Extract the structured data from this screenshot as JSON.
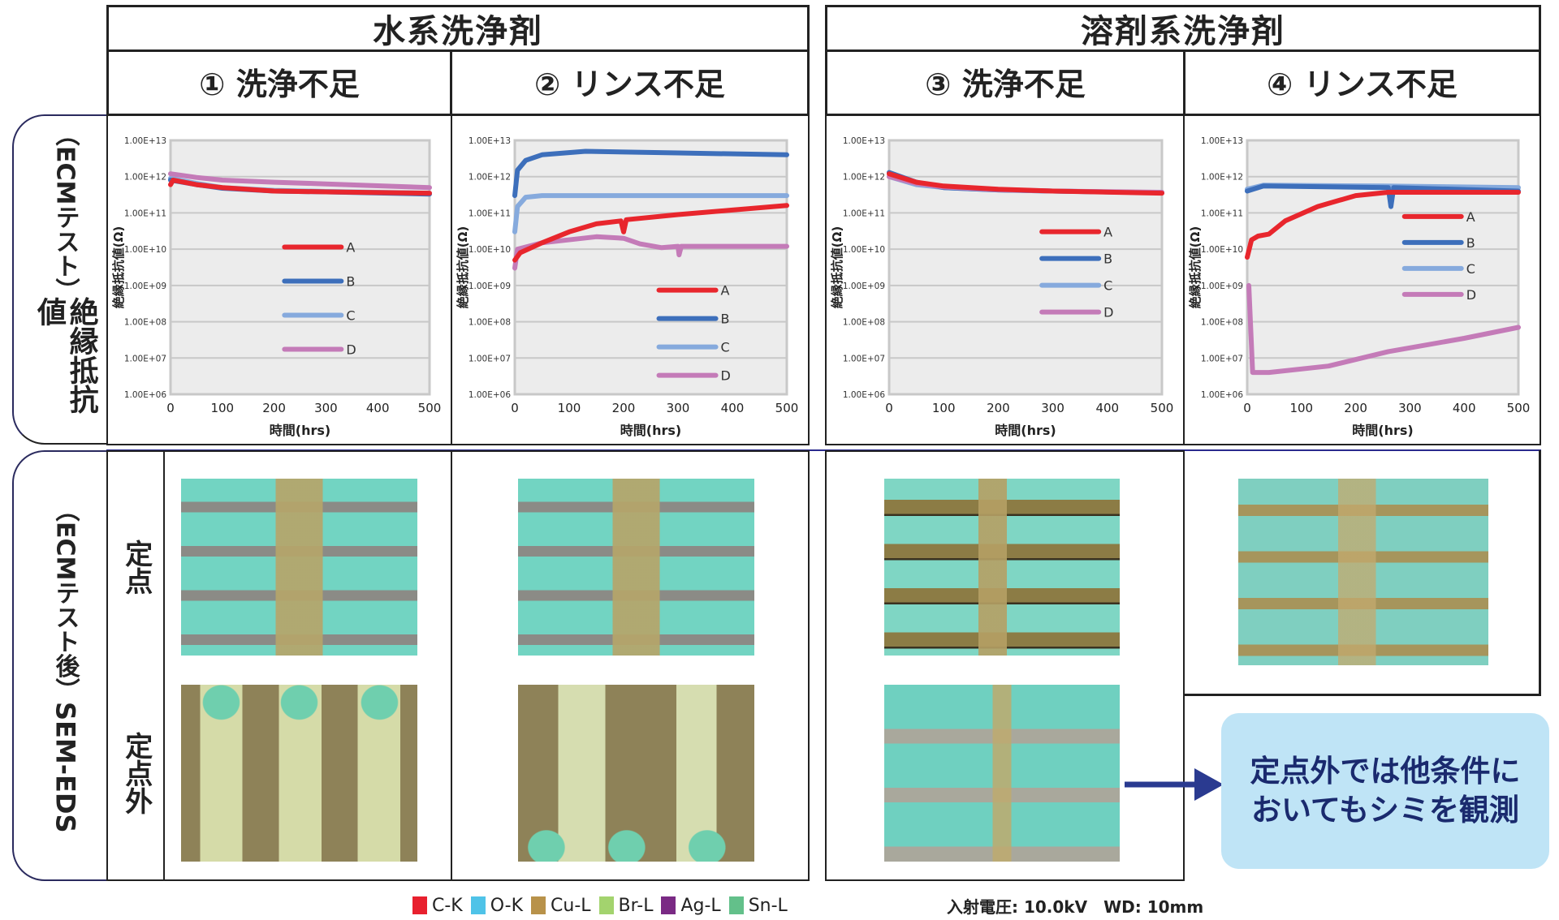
{
  "headers": {
    "aqueous": "水系洗浄剤",
    "solvent": "溶剤系洗浄剤",
    "cases": [
      "① 洗浄不足",
      "② リンス不足",
      "③ 洗浄不足",
      "④ リンス不足"
    ]
  },
  "rows": {
    "ecm_label_main": "絶縁抵抗値",
    "ecm_label_sub": "（ECMテスト）",
    "sem_label_main": "SEM-EDS",
    "sem_label_sub": "（ECMテスト後）",
    "fixed_point": "定点",
    "outside_fixed_point": "定点外"
  },
  "callout": "定点外では他条件にもおいてもシミを観測",
  "callout_lines": [
    "定点外では他条件に",
    "おいてもシミを観測"
  ],
  "eds_legend": [
    {
      "label": "C-K",
      "color": "#e8202e"
    },
    {
      "label": "O-K",
      "color": "#4fc3e8"
    },
    {
      "label": "Cu-L",
      "color": "#b8924a"
    },
    {
      "label": "Br-L",
      "color": "#a3d36e"
    },
    {
      "label": "Ag-L",
      "color": "#7a2a84"
    },
    {
      "label": "Sn-L",
      "color": "#63c08a"
    }
  ],
  "conditions": "入射電圧: 10.0kV　WD: 10mm",
  "colors": {
    "A": "#e8262d",
    "B": "#3d6fbb",
    "C": "#86aadd",
    "D": "#c47bb8",
    "arrow": "#2a3a90",
    "callout_bg": "#bfe4f6"
  },
  "chart_data": [
    {
      "type": "line",
      "title": "① 洗浄不足",
      "xlabel": "時間(hrs)",
      "ylabel": "絶縁抵抗値(Ω)",
      "xlim": [
        0,
        500
      ],
      "ylim": [
        1000000.0,
        10000000000000.0
      ],
      "yscale": "log",
      "xticks": [
        "0",
        "100",
        "200",
        "300",
        "400",
        "500"
      ],
      "yticks": [
        "1.00E+06",
        "1.00E+07",
        "1.00E+08",
        "1.00E+09",
        "1.00E+10",
        "1.00E+11",
        "1.00E+12",
        "1.00E+13"
      ],
      "grid": true,
      "legend": "center-right",
      "series": [
        {
          "name": "A",
          "points": [
            [
              0,
              600000000000.0
            ],
            [
              5,
              800000000000.0
            ],
            [
              50,
              600000000000.0
            ],
            [
              100,
              500000000000.0
            ],
            [
              200,
              400000000000.0
            ],
            [
              300,
              380000000000.0
            ],
            [
              500,
              350000000000.0
            ]
          ]
        },
        {
          "name": "B",
          "points": [
            [
              0,
              800000000000.0
            ],
            [
              50,
              600000000000.0
            ],
            [
              100,
              480000000000.0
            ],
            [
              200,
              400000000000.0
            ],
            [
              300,
              380000000000.0
            ],
            [
              500,
              330000000000.0
            ]
          ]
        },
        {
          "name": "C",
          "points": [
            [
              0,
              900000000000.0
            ],
            [
              50,
              650000000000.0
            ],
            [
              100,
              500000000000.0
            ],
            [
              200,
              420000000000.0
            ],
            [
              300,
              390000000000.0
            ],
            [
              500,
              350000000000.0
            ]
          ]
        },
        {
          "name": "D",
          "points": [
            [
              0,
              1200000000000.0
            ],
            [
              50,
              950000000000.0
            ],
            [
              100,
              800000000000.0
            ],
            [
              200,
              700000000000.0
            ],
            [
              300,
              630000000000.0
            ],
            [
              400,
              560000000000.0
            ],
            [
              500,
              500000000000.0
            ]
          ]
        }
      ]
    },
    {
      "type": "line",
      "title": "② リンス不足",
      "xlabel": "時間(hrs)",
      "ylabel": "絶縁抵抗値(Ω)",
      "xlim": [
        0,
        500
      ],
      "ylim": [
        1000000.0,
        10000000000000.0
      ],
      "yscale": "log",
      "xticks": [
        "0",
        "100",
        "200",
        "300",
        "400",
        "500"
      ],
      "yticks": [
        "1.00E+06",
        "1.00E+07",
        "1.00E+08",
        "1.00E+09",
        "1.00E+10",
        "1.00E+11",
        "1.00E+12",
        "1.00E+13"
      ],
      "grid": true,
      "legend": "lower-right",
      "series": [
        {
          "name": "A",
          "points": [
            [
              0,
              5000000000.0
            ],
            [
              10,
              8000000000.0
            ],
            [
              50,
              15000000000.0
            ],
            [
              100,
              30000000000.0
            ],
            [
              150,
              50000000000.0
            ],
            [
              195,
              60000000000.0
            ],
            [
              200,
              30000000000.0
            ],
            [
              205,
              65000000000.0
            ],
            [
              300,
              90000000000.0
            ],
            [
              400,
              120000000000.0
            ],
            [
              500,
              160000000000.0
            ]
          ]
        },
        {
          "name": "B",
          "points": [
            [
              0,
              300000000000.0
            ],
            [
              5,
              1500000000000.0
            ],
            [
              20,
              2800000000000.0
            ],
            [
              50,
              4000000000000.0
            ],
            [
              130,
              5000000000000.0
            ],
            [
              300,
              4500000000000.0
            ],
            [
              500,
              4000000000000.0
            ]
          ]
        },
        {
          "name": "C",
          "points": [
            [
              0,
              30000000000.0
            ],
            [
              5,
              150000000000.0
            ],
            [
              20,
              270000000000.0
            ],
            [
              50,
              300000000000.0
            ],
            [
              500,
              300000000000.0
            ]
          ]
        },
        {
          "name": "D",
          "points": [
            [
              0,
              3000000000.0
            ],
            [
              5,
              10000000000.0
            ],
            [
              50,
              15000000000.0
            ],
            [
              150,
              22000000000.0
            ],
            [
              200,
              20000000000.0
            ],
            [
              230,
              14000000000.0
            ],
            [
              270,
              11000000000.0
            ],
            [
              300,
              12000000000.0
            ],
            [
              302,
              7000000000.0
            ],
            [
              306,
              12000000000.0
            ],
            [
              500,
              12000000000.0
            ]
          ]
        }
      ]
    },
    {
      "type": "line",
      "title": "③ 洗浄不足",
      "xlabel": "時間(hrs)",
      "ylabel": "絶縁抵抗値(Ω)",
      "xlim": [
        0,
        500
      ],
      "ylim": [
        1000000.0,
        10000000000000.0
      ],
      "yscale": "log",
      "xticks": [
        "0",
        "100",
        "200",
        "300",
        "400",
        "500"
      ],
      "yticks": [
        "1.00E+06",
        "1.00E+07",
        "1.00E+08",
        "1.00E+09",
        "1.00E+10",
        "1.00E+11",
        "1.00E+12",
        "1.00E+13"
      ],
      "grid": true,
      "legend": "center-right",
      "series": [
        {
          "name": "A",
          "points": [
            [
              0,
              1200000000000.0
            ],
            [
              50,
              700000000000.0
            ],
            [
              100,
              550000000000.0
            ],
            [
              200,
              450000000000.0
            ],
            [
              300,
              400000000000.0
            ],
            [
              500,
              350000000000.0
            ]
          ]
        },
        {
          "name": "B",
          "points": [
            [
              0,
              1300000000000.0
            ],
            [
              50,
              700000000000.0
            ],
            [
              100,
              500000000000.0
            ],
            [
              200,
              430000000000.0
            ],
            [
              300,
              400000000000.0
            ],
            [
              500,
              360000000000.0
            ]
          ]
        },
        {
          "name": "C",
          "points": [
            [
              0,
              1000000000000.0
            ],
            [
              50,
              600000000000.0
            ],
            [
              100,
              500000000000.0
            ],
            [
              200,
              430000000000.0
            ],
            [
              300,
              400000000000.0
            ],
            [
              500,
              360000000000.0
            ]
          ]
        },
        {
          "name": "D",
          "points": [
            [
              0,
              1000000000000.0
            ],
            [
              50,
              650000000000.0
            ],
            [
              100,
              520000000000.0
            ],
            [
              200,
              440000000000.0
            ],
            [
              300,
              400000000000.0
            ],
            [
              500,
              370000000000.0
            ]
          ]
        }
      ]
    },
    {
      "type": "line",
      "title": "④ リンス不足",
      "xlabel": "時間(hrs)",
      "ylabel": "絶縁抵抗値(Ω)",
      "xlim": [
        0,
        500
      ],
      "ylim": [
        1000000.0,
        10000000000000.0
      ],
      "yscale": "log",
      "xticks": [
        "0",
        "100",
        "200",
        "300",
        "400",
        "500"
      ],
      "yticks": [
        "1.00E+06",
        "1.00E+07",
        "1.00E+08",
        "1.00E+09",
        "1.00E+10",
        "1.00E+11",
        "1.00E+12",
        "1.00E+13"
      ],
      "grid": true,
      "legend": "upper-right",
      "series": [
        {
          "name": "A",
          "points": [
            [
              0,
              6000000000.0
            ],
            [
              8,
              18000000000.0
            ],
            [
              20,
              23000000000.0
            ],
            [
              40,
              26000000000.0
            ],
            [
              70,
              60000000000.0
            ],
            [
              130,
              150000000000.0
            ],
            [
              200,
              300000000000.0
            ],
            [
              260,
              370000000000.0
            ],
            [
              500,
              370000000000.0
            ]
          ]
        },
        {
          "name": "B",
          "points": [
            [
              0,
              400000000000.0
            ],
            [
              30,
              550000000000.0
            ],
            [
              260,
              500000000000.0
            ],
            [
              265,
              150000000000.0
            ],
            [
              270,
              500000000000.0
            ],
            [
              500,
              400000000000.0
            ]
          ]
        },
        {
          "name": "C",
          "points": [
            [
              0,
              450000000000.0
            ],
            [
              30,
              580000000000.0
            ],
            [
              250,
              550000000000.0
            ],
            [
              500,
              500000000000.0
            ]
          ]
        },
        {
          "name": "D",
          "points": [
            [
              3,
              1000000000.0
            ],
            [
              10,
              4000000.0
            ],
            [
              40,
              4000000.0
            ],
            [
              150,
              6000000.0
            ],
            [
              260,
              15000000.0
            ],
            [
              400,
              35000000.0
            ],
            [
              500,
              70000000.0
            ]
          ]
        }
      ]
    }
  ]
}
